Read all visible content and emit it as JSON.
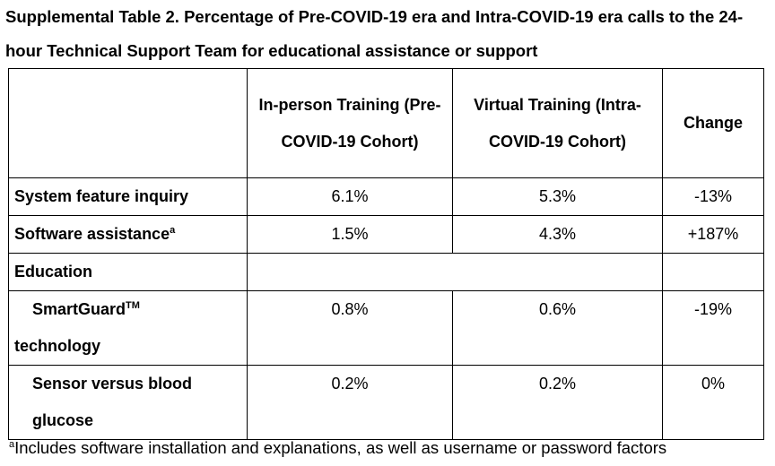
{
  "title": "Supplemental Table 2. Percentage of Pre-COVID-19 era and Intra-COVID-19 era calls to the 24-hour Technical Support Team for educational assistance or support",
  "columns": {
    "blank": "",
    "in_person": "In-person Training (Pre-COVID-19 Cohort)",
    "virtual": "Virtual Training (Intra-COVID-19 Cohort)",
    "change": "Change"
  },
  "rows": {
    "system_feature": {
      "label": "System feature inquiry",
      "in_person": "6.1%",
      "virtual": "5.3%",
      "change": "-13%"
    },
    "software": {
      "label": "Software assistance",
      "label_sup": "a",
      "in_person": "1.5%",
      "virtual": "4.3%",
      "change": "+187%"
    },
    "education": {
      "label": "Education"
    },
    "smartguard": {
      "label": "SmartGuard",
      "label_sup": "TM",
      "label_cont": "technology",
      "in_person": "0.8%",
      "virtual": "0.6%",
      "change": "-19%"
    },
    "sensor": {
      "label": "Sensor versus blood glucose",
      "in_person": "0.2%",
      "virtual": "0.2%",
      "change": "0%"
    }
  },
  "footnote": {
    "marker": "a",
    "text": "Includes software installation and explanations, as well as username or password factors"
  }
}
